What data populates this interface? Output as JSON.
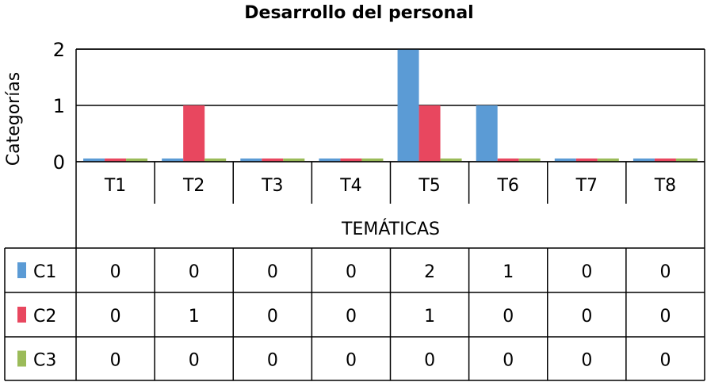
{
  "chart_data": {
    "type": "bar",
    "title": "Desarrollo del personal",
    "xlabel": "TEMÁTICAS",
    "ylabel": "Categorías",
    "categories": [
      "T1",
      "T2",
      "T3",
      "T4",
      "T5",
      "T6",
      "T7",
      "T8"
    ],
    "y_ticks": [
      "0",
      "1",
      "2"
    ],
    "ylim": [
      0,
      2
    ],
    "grid": true,
    "legend": "data table",
    "series": [
      {
        "name": "C1",
        "color": "#5B9BD5",
        "values": [
          0,
          0,
          0,
          0,
          2,
          1,
          0,
          0
        ],
        "labels": [
          "0",
          "0",
          "0",
          "0",
          "2",
          "1",
          "0",
          "0"
        ]
      },
      {
        "name": "C2",
        "color": "#E8475F",
        "values": [
          0,
          1,
          0,
          0,
          1,
          0,
          0,
          0
        ],
        "labels": [
          "0",
          "1",
          "0",
          "0",
          "1",
          "0",
          "0",
          "0"
        ]
      },
      {
        "name": "C3",
        "color": "#9BBB59",
        "values": [
          0,
          0,
          0,
          0,
          0,
          0,
          0,
          0
        ],
        "labels": [
          "0",
          "0",
          "0",
          "0",
          "0",
          "0",
          "0",
          "0"
        ]
      }
    ]
  }
}
